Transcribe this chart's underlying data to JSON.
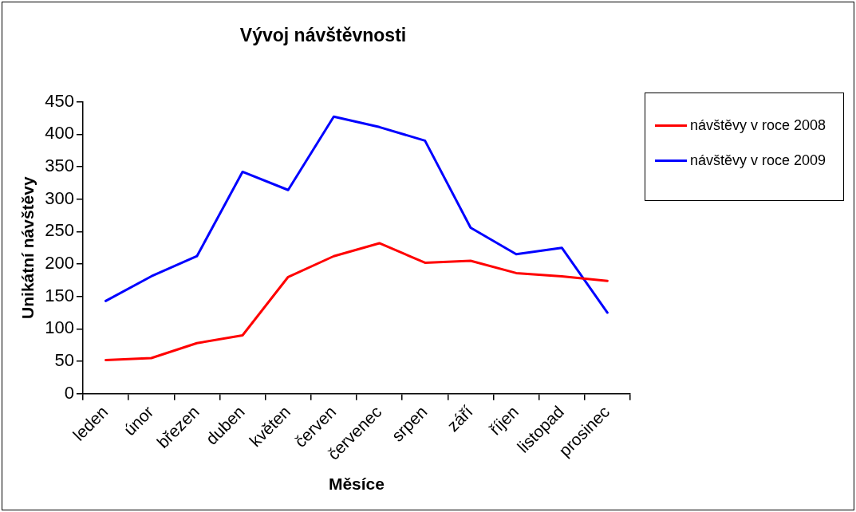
{
  "chart_data": {
    "type": "line",
    "title": "Vývoj návštěvnosti",
    "xlabel": "Měsíce",
    "ylabel": "Unikátní návštěvy",
    "categories": [
      "leden",
      "únor",
      "březen",
      "duben",
      "květen",
      "červen",
      "červenec",
      "srpen",
      "září",
      "říjen",
      "listopad",
      "prosinec"
    ],
    "series": [
      {
        "name": "návštěvy v roce 2008",
        "color": "#ff0000",
        "values": [
          52,
          55,
          78,
          90,
          180,
          212,
          232,
          202,
          205,
          186,
          181,
          174
        ]
      },
      {
        "name": "návštěvy v roce 2009",
        "color": "#0000ff",
        "values": [
          143,
          181,
          212,
          342,
          314,
          427,
          411,
          390,
          256,
          215,
          225,
          125
        ]
      }
    ],
    "ylim": [
      0,
      450
    ],
    "yticks": [
      0,
      50,
      100,
      150,
      200,
      250,
      300,
      350,
      400,
      450
    ],
    "grid": false,
    "legend": "right",
    "marker": "none",
    "line_style": "solid"
  }
}
